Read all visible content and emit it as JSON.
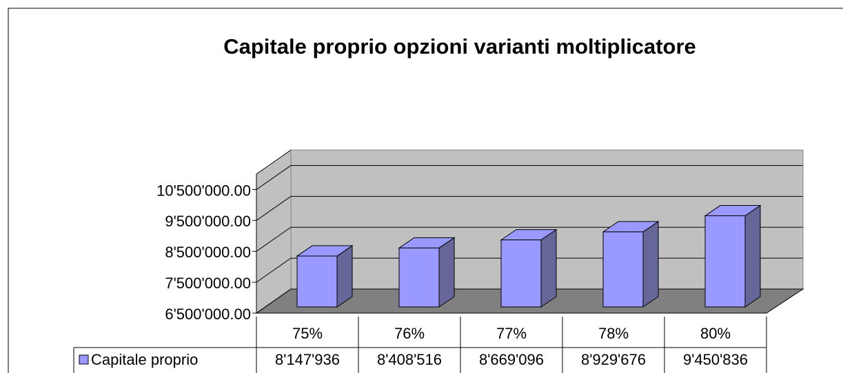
{
  "chart_data": {
    "type": "bar3d",
    "title": "Capitale proprio opzioni varianti moltiplicatore",
    "categories": [
      "75%",
      "76%",
      "77%",
      "78%",
      "80%"
    ],
    "series": [
      {
        "name": "Capitale proprio",
        "color": "#9999ff",
        "values": [
          8147936,
          8408516,
          8669096,
          8929676,
          9450836
        ],
        "value_labels": [
          "8'147'936",
          "8'408'516",
          "8'669'096",
          "8'929'676",
          "9'450'836"
        ]
      }
    ],
    "ylim": [
      6500000,
      11000000
    ],
    "yticks": [
      {
        "value": 6500000,
        "label": "6'500'000.00"
      },
      {
        "value": 7500000,
        "label": "7'500'000.00"
      },
      {
        "value": 8500000,
        "label": "8'500'000.00"
      },
      {
        "value": 9500000,
        "label": "9'500'000.00"
      },
      {
        "value": 10500000,
        "label": "10'500'000.00"
      }
    ],
    "grid": true,
    "legend": "table"
  }
}
